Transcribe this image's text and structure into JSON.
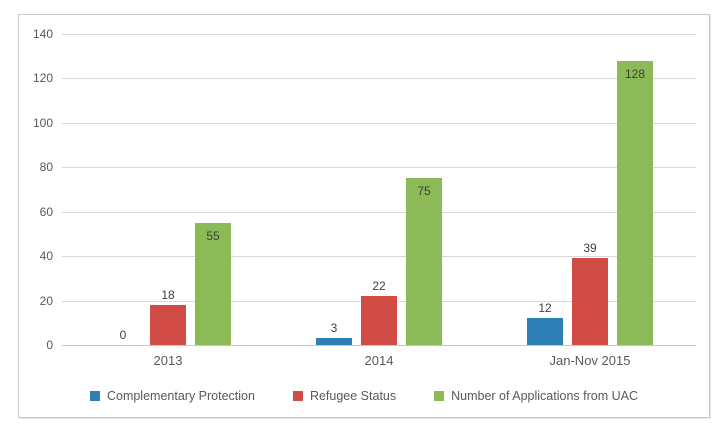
{
  "chart_data": {
    "type": "bar",
    "title": "",
    "xlabel": "",
    "ylabel": "",
    "categories": [
      "2013",
      "2014",
      "Jan-Nov 2015"
    ],
    "series": [
      {
        "name": "Complementary Protection",
        "color": "#2e7fb5",
        "values": [
          0,
          3,
          12
        ],
        "label_position": "outside"
      },
      {
        "name": "Refugee Status",
        "color": "#d04c44",
        "values": [
          18,
          22,
          39
        ],
        "label_position": "outside"
      },
      {
        "name": "Number of Applications from UAC",
        "color": "#8cba56",
        "values": [
          55,
          75,
          128
        ],
        "label_position": "inside"
      }
    ],
    "ylim": [
      0,
      140
    ],
    "yticks": [
      0,
      20,
      40,
      60,
      80,
      100,
      120,
      140
    ],
    "grid": true,
    "show_data_labels": true,
    "legend_position": "bottom"
  },
  "colors": {
    "gridline": "#d9d9d9",
    "zero_axis": "#c6c6c6",
    "axis_text": "#595959",
    "data_label_text": "#404040",
    "frame_border": "#c9c9c9",
    "background": "#ffffff"
  }
}
